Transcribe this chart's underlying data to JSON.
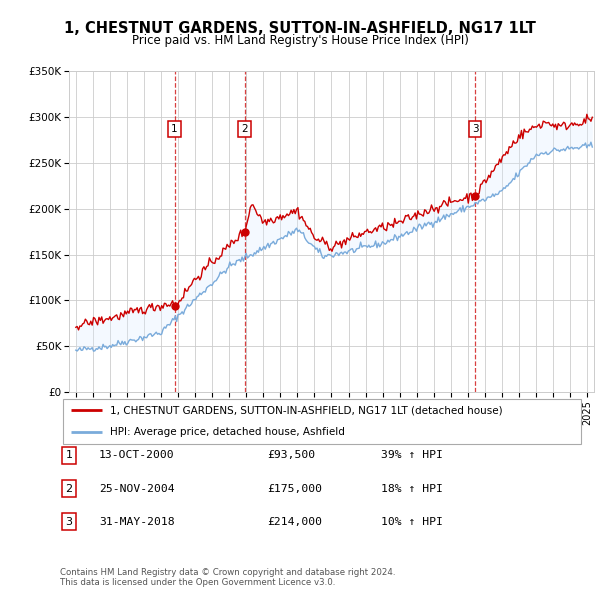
{
  "title": "1, CHESTNUT GARDENS, SUTTON-IN-ASHFIELD, NG17 1LT",
  "subtitle": "Price paid vs. HM Land Registry's House Price Index (HPI)",
  "ylim": [
    0,
    350000
  ],
  "yticks": [
    0,
    50000,
    100000,
    150000,
    200000,
    250000,
    300000,
    350000
  ],
  "ytick_labels": [
    "£0",
    "£50K",
    "£100K",
    "£150K",
    "£200K",
    "£250K",
    "£300K",
    "£350K"
  ],
  "xlim_start": 1994.6,
  "xlim_end": 2025.4,
  "sale_dates": [
    2000.79,
    2004.9,
    2018.42
  ],
  "sale_prices": [
    93500,
    175000,
    214000
  ],
  "sale_labels": [
    "1",
    "2",
    "3"
  ],
  "sale_date_strs": [
    "13-OCT-2000",
    "25-NOV-2004",
    "31-MAY-2018"
  ],
  "sale_price_strs": [
    "£93,500",
    "£175,000",
    "£214,000"
  ],
  "sale_hpi_strs": [
    "39% ↑ HPI",
    "18% ↑ HPI",
    "10% ↑ HPI"
  ],
  "legend_line1": "1, CHESTNUT GARDENS, SUTTON-IN-ASHFIELD, NG17 1LT (detached house)",
  "legend_line2": "HPI: Average price, detached house, Ashfield",
  "footer": "Contains HM Land Registry data © Crown copyright and database right 2024.\nThis data is licensed under the Open Government Licence v3.0.",
  "red_color": "#cc0000",
  "blue_color": "#7aabdb",
  "shade_color": "#ddeeff",
  "background_color": "#ffffff",
  "grid_color": "#cccccc",
  "title_fontsize": 10.5,
  "subtitle_fontsize": 8.5
}
